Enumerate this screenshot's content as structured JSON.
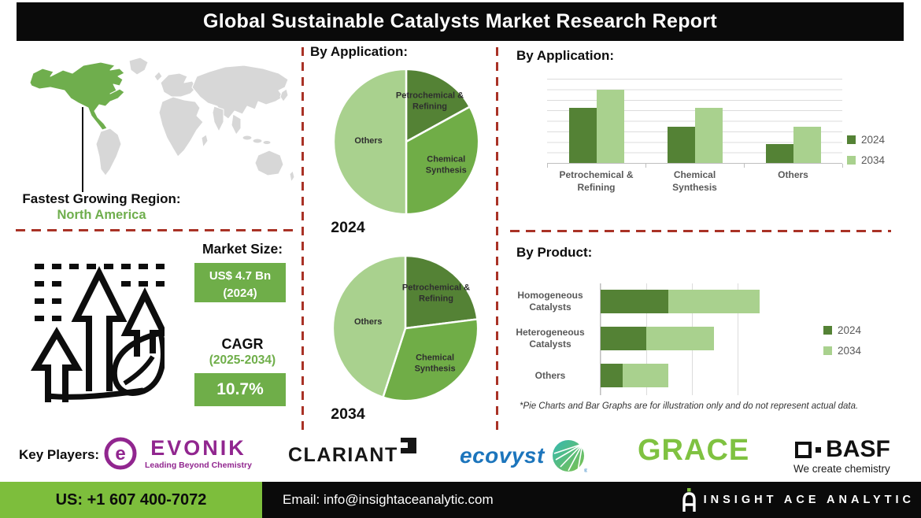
{
  "title": "Global Sustainable Catalysts Market Research Report",
  "map": {
    "fastest_label": "Fastest Growing Region:",
    "fastest_value": "North America"
  },
  "stats": {
    "market_size_label": "Market Size:",
    "market_size_value": "US$ 4.7 Bn",
    "market_size_year": "(2024)",
    "cagr_label": "CAGR",
    "cagr_period": "(2025-2034)",
    "cagr_value": "10.7%"
  },
  "sections": {
    "pie_title": "By Application:",
    "bar_title": "By Application:",
    "product_title": "By Product:"
  },
  "footnote": "*Pie Charts and Bar Graphs are for illustration only and do not represent actual data.",
  "key_players": {
    "label": "Key Players:",
    "evonik": {
      "name": "EVONIK",
      "tagline": "Leading Beyond Chemistry"
    },
    "clariant": {
      "name": "CLARIANT"
    },
    "ecovyst": {
      "name": "ecovyst"
    },
    "grace": {
      "name": "GRACE"
    },
    "basf": {
      "name": "BASF",
      "tagline": "We create chemistry"
    }
  },
  "footer": {
    "phone": "US: +1 607 400-7072",
    "email": "Email: info@insightaceanalytic.com",
    "brand": "INSIGHT ACE ANALYTIC"
  },
  "colors": {
    "accent_green": "#6FAE49",
    "dark_green": "#548235",
    "mid_green": "#70AD47",
    "light_green": "#A9D18E",
    "footer_green": "#7DBE3C",
    "dashed_red": "#A93226",
    "map_gray": "#D7D7D7",
    "na_green": "#6FAE4D",
    "evonik_purple": "#91268F",
    "ecovyst_blue": "#1C75BC",
    "grace_green": "#7FC241"
  },
  "chart_data": [
    {
      "type": "pie",
      "id": "pie-2024",
      "title": "By Application:",
      "caption": "2024",
      "slices": [
        {
          "label": "Petrochemical & Refining",
          "value": 17,
          "color": "#548235"
        },
        {
          "label": "Chemical Synthesis",
          "value": 33,
          "color": "#70AD47"
        },
        {
          "label": "Others",
          "value": 50,
          "color": "#A9D18E"
        }
      ],
      "note": "illustrative shares, % of circle"
    },
    {
      "type": "pie",
      "id": "pie-2034",
      "title": "By Application:",
      "caption": "2034",
      "slices": [
        {
          "label": "Petrochemical & Refining",
          "value": 23,
          "color": "#548235"
        },
        {
          "label": "Chemical Synthesis",
          "value": 32,
          "color": "#70AD47"
        },
        {
          "label": "Others",
          "value": 45,
          "color": "#A9D18E"
        }
      ],
      "note": "illustrative shares, % of circle"
    },
    {
      "type": "bar",
      "id": "bar-application",
      "title": "By Application:",
      "categories": [
        "Petrochemical & Refining",
        "Chemical Synthesis",
        "Others"
      ],
      "series": [
        {
          "name": "2024",
          "color": "#548235",
          "values": [
            65,
            43,
            22
          ]
        },
        {
          "name": "2034",
          "color": "#A9D18E",
          "values": [
            87,
            65,
            43
          ]
        }
      ],
      "ylim": [
        0,
        100
      ],
      "grid": true,
      "legend_position": "right",
      "note": "illustrative values, % of axis max"
    },
    {
      "type": "bar-horizontal-stacked",
      "id": "bar-product",
      "title": "By Product:",
      "categories": [
        "Homogeneous Catalysts",
        "Heterogeneous Catalysts",
        "Others"
      ],
      "series": [
        {
          "name": "2024",
          "color": "#548235",
          "values": [
            37,
            25,
            12
          ]
        },
        {
          "name": "2034",
          "color": "#A9D18E",
          "values": [
            50,
            37,
            25
          ]
        }
      ],
      "xlim": [
        0,
        100
      ],
      "grid": true,
      "legend_position": "right",
      "note": "illustrative values, % of axis max"
    }
  ]
}
